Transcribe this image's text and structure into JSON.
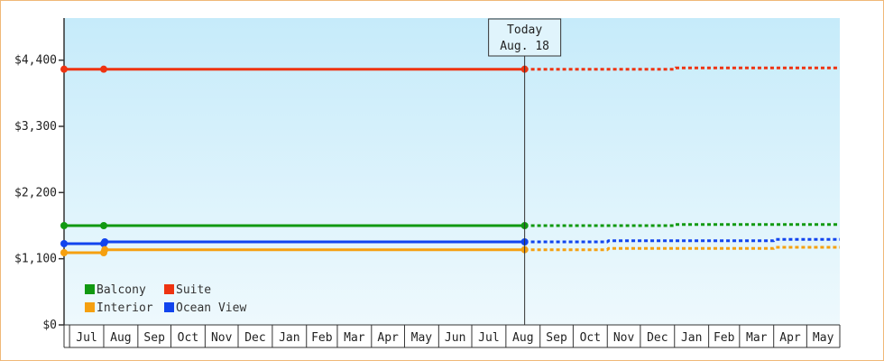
{
  "chart_data": {
    "type": "line",
    "title": "",
    "xlabel": "",
    "ylabel": "",
    "y_ticks": [
      {
        "value": 0,
        "label": "$0"
      },
      {
        "value": 1100,
        "label": "$1,100"
      },
      {
        "value": 2200,
        "label": "$2,200"
      },
      {
        "value": 3300,
        "label": "$3,300"
      },
      {
        "value": 4400,
        "label": "$4,400"
      }
    ],
    "ylim": [
      0,
      5100
    ],
    "xlim": [
      "2017-06-26",
      "2019-05-31"
    ],
    "months": [
      {
        "label": "Jul",
        "start": "2017-07-01"
      },
      {
        "label": "Aug",
        "start": "2017-08-01"
      },
      {
        "label": "Sep",
        "start": "2017-09-01"
      },
      {
        "label": "Oct",
        "start": "2017-10-01"
      },
      {
        "label": "Nov",
        "start": "2017-11-01"
      },
      {
        "label": "Dec",
        "start": "2017-12-01"
      },
      {
        "label": "Jan",
        "start": "2018-01-01"
      },
      {
        "label": "Feb",
        "start": "2018-02-01"
      },
      {
        "label": "Mar",
        "start": "2018-03-01"
      },
      {
        "label": "Apr",
        "start": "2018-04-01"
      },
      {
        "label": "May",
        "start": "2018-05-01"
      },
      {
        "label": "Jun",
        "start": "2018-06-01"
      },
      {
        "label": "Jul",
        "start": "2018-07-01"
      },
      {
        "label": "Aug",
        "start": "2018-08-01"
      },
      {
        "label": "Sep",
        "start": "2018-09-01"
      },
      {
        "label": "Oct",
        "start": "2018-10-01"
      },
      {
        "label": "Nov",
        "start": "2018-11-01"
      },
      {
        "label": "Dec",
        "start": "2018-12-01"
      },
      {
        "label": "Jan",
        "start": "2019-01-01"
      },
      {
        "label": "Feb",
        "start": "2019-02-01"
      },
      {
        "label": "Mar",
        "start": "2019-03-01"
      },
      {
        "label": "Apr",
        "start": "2019-04-01"
      },
      {
        "label": "May",
        "start": "2019-05-01"
      }
    ],
    "today": {
      "date": "2018-08-18",
      "label_line1": "Today",
      "label_line2": "Aug. 18"
    },
    "series": [
      {
        "name": "Suite",
        "color": "#ee3311",
        "history": [
          [
            "2017-06-26",
            4250
          ],
          [
            "2017-08-01",
            4250
          ],
          [
            "2018-08-18",
            4250
          ]
        ],
        "forecast": [
          [
            "2018-08-18",
            4250
          ],
          [
            "2019-01-01",
            4250
          ],
          [
            "2019-01-02",
            4270
          ],
          [
            "2019-05-31",
            4270
          ]
        ]
      },
      {
        "name": "Balcony",
        "color": "#119911",
        "history": [
          [
            "2017-06-26",
            1650
          ],
          [
            "2017-08-01",
            1650
          ],
          [
            "2018-08-18",
            1650
          ]
        ],
        "forecast": [
          [
            "2018-08-18",
            1650
          ],
          [
            "2019-01-01",
            1650
          ],
          [
            "2019-01-02",
            1670
          ],
          [
            "2019-05-31",
            1670
          ]
        ]
      },
      {
        "name": "Ocean View",
        "color": "#1144ee",
        "history": [
          [
            "2017-06-26",
            1350
          ],
          [
            "2017-08-01",
            1350
          ],
          [
            "2017-08-02",
            1380
          ],
          [
            "2018-08-18",
            1380
          ]
        ],
        "forecast": [
          [
            "2018-08-18",
            1380
          ],
          [
            "2018-11-01",
            1380
          ],
          [
            "2018-11-02",
            1400
          ],
          [
            "2019-04-01",
            1400
          ],
          [
            "2019-04-02",
            1420
          ],
          [
            "2019-05-31",
            1420
          ]
        ]
      },
      {
        "name": "Interior",
        "color": "#f5a010",
        "history": [
          [
            "2017-06-26",
            1200
          ],
          [
            "2017-08-01",
            1200
          ],
          [
            "2017-08-02",
            1250
          ],
          [
            "2018-08-18",
            1250
          ]
        ],
        "forecast": [
          [
            "2018-08-18",
            1250
          ],
          [
            "2018-11-01",
            1250
          ],
          [
            "2018-11-02",
            1270
          ],
          [
            "2019-04-01",
            1270
          ],
          [
            "2019-04-02",
            1290
          ],
          [
            "2019-05-31",
            1290
          ]
        ]
      }
    ],
    "legend": {
      "placement": "bottom-left",
      "rows": [
        [
          "Balcony",
          "Suite"
        ],
        [
          "Interior",
          "Ocean View"
        ]
      ]
    },
    "grid": false
  }
}
